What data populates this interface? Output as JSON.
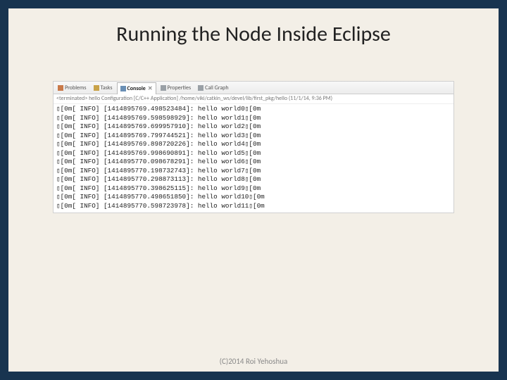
{
  "slide": {
    "title": "Running the Node Inside Eclipse",
    "footer": "(C)2014 Roi Yehoshua",
    "background_color": "#f3efe7",
    "frame_color": "#183450"
  },
  "eclipse": {
    "tabs": [
      {
        "label": "Problems",
        "active": false,
        "icon_color": "#c97a4a"
      },
      {
        "label": "Tasks",
        "active": false,
        "icon_color": "#c9a34a"
      },
      {
        "label": "Console",
        "active": true,
        "icon_color": "#6a8fb5"
      },
      {
        "label": "Properties",
        "active": false,
        "icon_color": "#9aa0a6"
      },
      {
        "label": "Call Graph",
        "active": false,
        "icon_color": "#9aa0a6"
      }
    ],
    "terminated_line": "<terminated> hello Configuration [C/C++ Application] /home/viki/catkin_ws/devel/lib/first_pkg/hello (11/1/14, 9:36 PM)",
    "console_font": "Courier New",
    "console_fontsize": 9.3,
    "lines": [
      {
        "ts": "1414895769.498523484",
        "n": 0
      },
      {
        "ts": "1414895769.598598929",
        "n": 1
      },
      {
        "ts": "1414895769.699957910",
        "n": 2
      },
      {
        "ts": "1414895769.799744521",
        "n": 3
      },
      {
        "ts": "1414895769.898720226",
        "n": 4
      },
      {
        "ts": "1414895769.998690891",
        "n": 5
      },
      {
        "ts": "1414895770.098678291",
        "n": 6
      },
      {
        "ts": "1414895770.198732743",
        "n": 7
      },
      {
        "ts": "1414895770.298873113",
        "n": 8
      },
      {
        "ts": "1414895770.398625115",
        "n": 9
      },
      {
        "ts": "1414895770.498651850",
        "n": 10
      },
      {
        "ts": "1414895770.598723978",
        "n": 11
      }
    ],
    "line_prefix_box": "▯",
    "line_esc_open": "[0m[ INFO] [",
    "line_esc_mid": "]: hello world",
    "line_esc_tail": "[0m"
  }
}
